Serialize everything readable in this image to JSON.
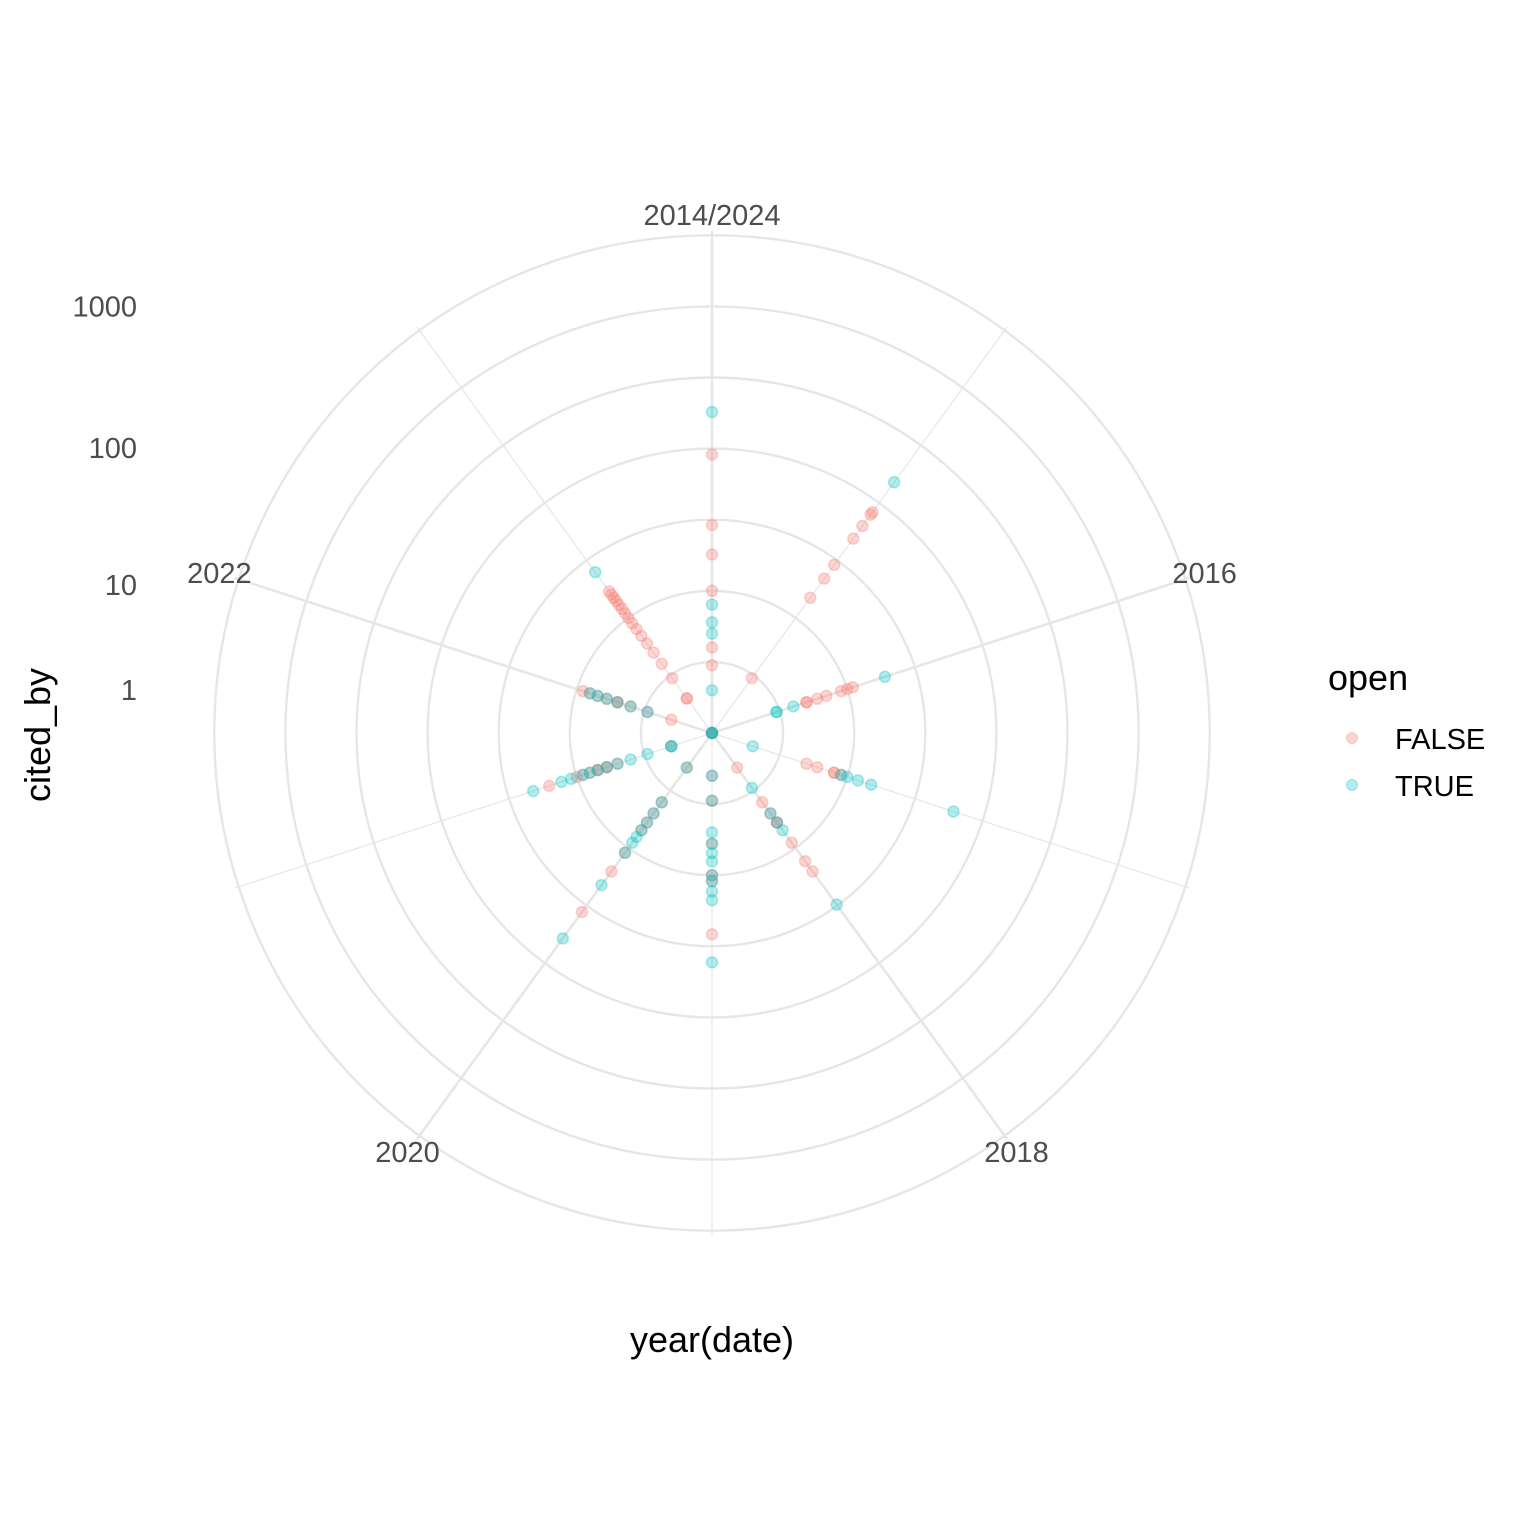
{
  "chart_data": {
    "type": "scatter",
    "coord": "polar",
    "xlabel": "year(date)",
    "ylabel": "cited_by",
    "x_ticks": [
      "2014/2024",
      "2016",
      "2018",
      "2020",
      "2022"
    ],
    "x_range": [
      2014,
      2024
    ],
    "y_scale": "log10(cited_by + 1)",
    "y_ticks": [
      "1000",
      "100",
      "10",
      "1"
    ],
    "y_range": [
      0,
      1000
    ],
    "legend": {
      "title": "open",
      "position": "right"
    },
    "colors": {
      "FALSE": "#F8766D",
      "TRUE": "#00BFC4",
      "grid": "#e6e6e6"
    },
    "series": [
      {
        "name": "FALSE",
        "points": [
          {
            "year": 2014,
            "cited_by": [
              0,
              2,
              3,
              9,
              17,
              28,
              90
            ]
          },
          {
            "year": 2015,
            "cited_by": [
              2,
              14,
              21,
              28,
              48,
              62,
              78,
              82
            ]
          },
          {
            "year": 2016,
            "cited_by": [
              4,
              4,
              5,
              6,
              8,
              9,
              10
            ]
          },
          {
            "year": 2017,
            "cited_by": [
              4,
              5,
              7,
              7,
              8
            ]
          },
          {
            "year": 2018,
            "cited_by": [
              0,
              1,
              3,
              4,
              5,
              5,
              8,
              12,
              15
            ]
          },
          {
            "year": 2019,
            "cited_by": [
              1,
              2,
              5,
              9,
              10,
              25
            ]
          },
          {
            "year": 2020,
            "cited_by": [
              1,
              3,
              4,
              5,
              6,
              10,
              15,
              35
            ]
          },
          {
            "year": 2021,
            "cited_by": [
              1,
              4,
              5,
              5,
              6,
              6,
              7,
              8,
              9,
              15
            ]
          },
          {
            "year": 2022,
            "cited_by": [
              1,
              2,
              3,
              4,
              4,
              5,
              6,
              7,
              8
            ]
          },
          {
            "year": 2023,
            "cited_by": [
              0,
              1,
              1,
              2,
              3,
              4,
              5,
              6,
              7,
              8,
              9,
              10,
              11,
              12,
              13,
              14,
              15,
              16
            ]
          }
        ]
      },
      {
        "name": "TRUE",
        "points": [
          {
            "year": 2014,
            "cited_by": [
              0,
              0,
              1,
              4,
              5,
              7,
              180
            ]
          },
          {
            "year": 2015,
            "cited_by": [
              150
            ]
          },
          {
            "year": 2016,
            "cited_by": [
              2,
              2,
              3,
              18
            ]
          },
          {
            "year": 2017,
            "cited_by": [
              1,
              8,
              9,
              11,
              14,
              60
            ]
          },
          {
            "year": 2018,
            "cited_by": [
              2,
              4,
              5,
              6,
              30
            ]
          },
          {
            "year": 2019,
            "cited_by": [
              1,
              2,
              4,
              5,
              6,
              7,
              9,
              10,
              12,
              14,
              40
            ]
          },
          {
            "year": 2020,
            "cited_by": [
              1,
              3,
              4,
              5,
              6,
              7,
              8,
              10,
              20,
              60
            ]
          },
          {
            "year": 2021,
            "cited_by": [
              1,
              1,
              2,
              3,
              4,
              5,
              6,
              7,
              8,
              10,
              12,
              20
            ]
          },
          {
            "year": 2022,
            "cited_by": [
              0,
              2,
              3,
              4,
              5,
              6,
              7
            ]
          },
          {
            "year": 2023,
            "cited_by": [
              24
            ]
          }
        ]
      }
    ]
  }
}
